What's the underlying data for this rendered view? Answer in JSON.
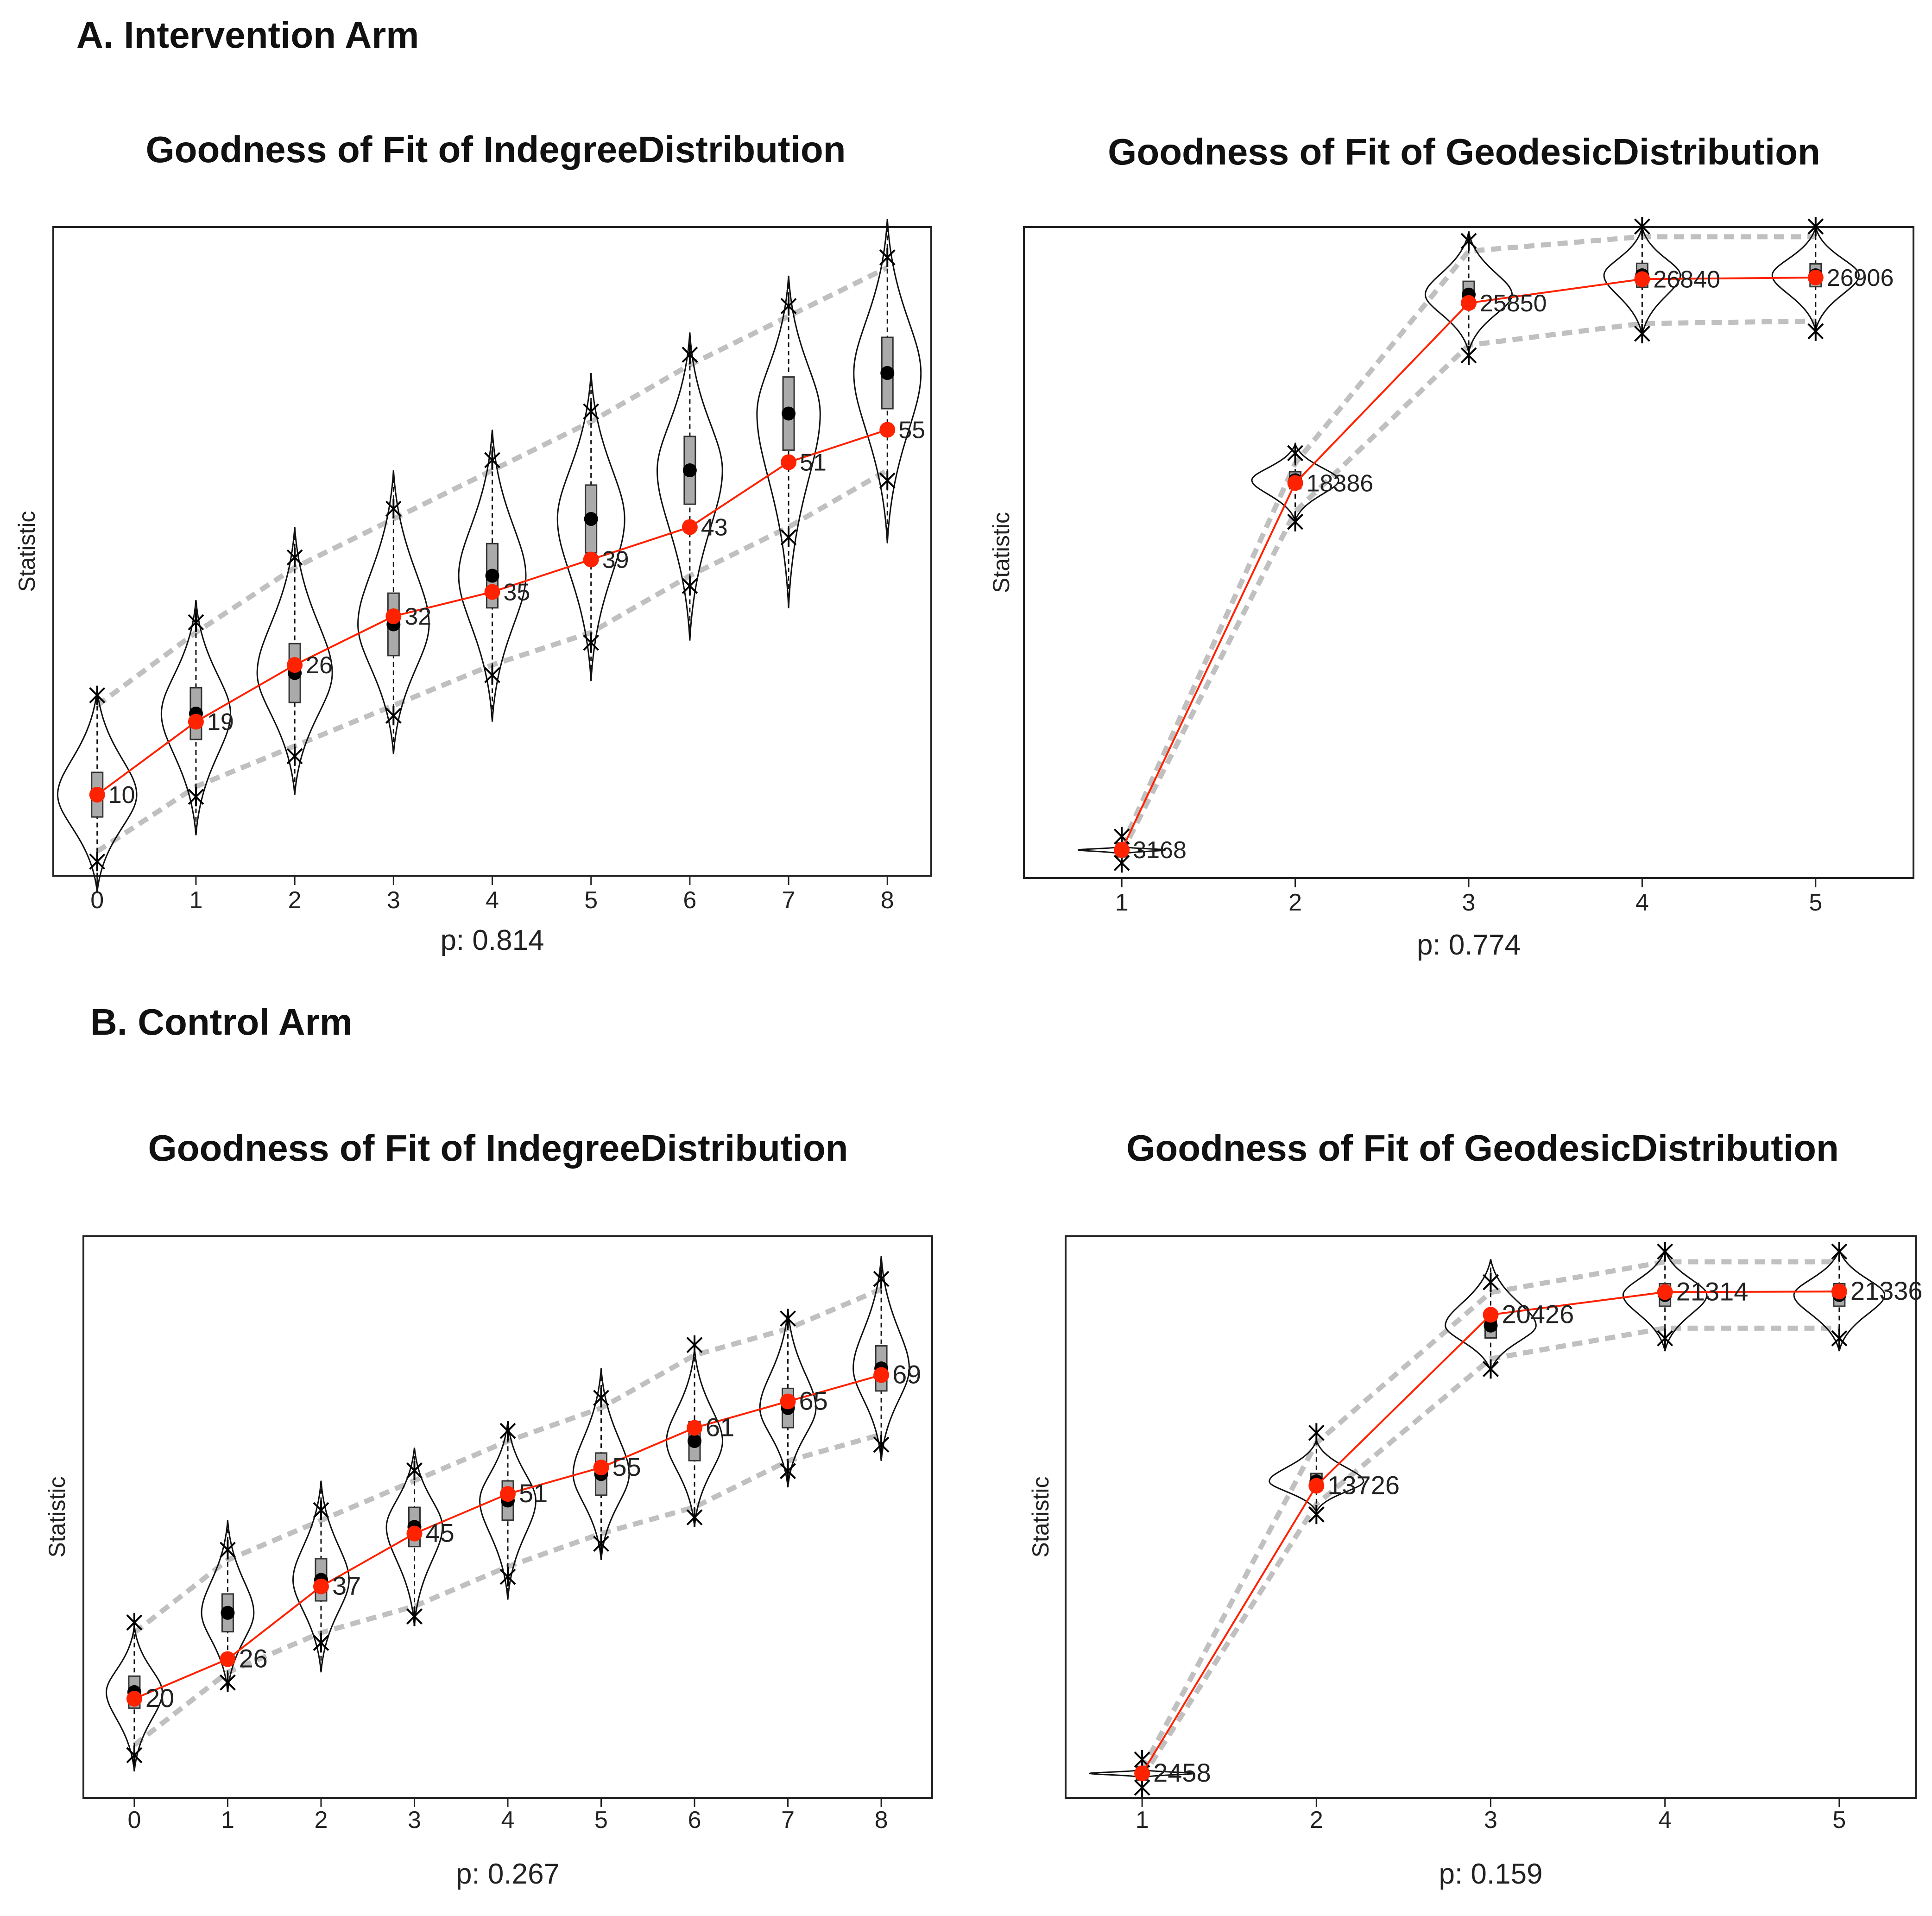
{
  "sections": {
    "a": "A. Intervention Arm",
    "b": "B. Control Arm"
  },
  "colors": {
    "observed": "#ff2200",
    "simulated": "#000000",
    "band": "#c0c0c0",
    "box": "#aaaaaa"
  },
  "chart_data": [
    {
      "type": "violin",
      "section": "A. Intervention Arm",
      "title": "Goodness of Fit of IndegreeDistribution",
      "xlabel": "p: 0.814",
      "ylabel": "Statistic",
      "categories": [
        "0",
        "1",
        "2",
        "3",
        "4",
        "5",
        "6",
        "7",
        "8"
      ],
      "ylim": [
        0,
        80
      ],
      "observed": [
        10,
        19,
        26,
        32,
        35,
        39,
        43,
        51,
        55
      ],
      "observed_labels": [
        "10",
        "19",
        "26",
        "32",
        "35",
        "39",
        "43",
        "51",
        "55"
      ],
      "simulated_median": [
        10,
        20,
        25,
        31,
        37,
        44,
        50,
        57,
        62
      ],
      "interval_upper": [
        21,
        30,
        38,
        44,
        50,
        56,
        63,
        69,
        75
      ],
      "interval_lower": [
        3,
        11,
        16,
        21,
        26,
        30,
        37,
        43,
        50
      ],
      "violin_min": [
        -2,
        5,
        10,
        15,
        19,
        24,
        29,
        33,
        41
      ],
      "violin_max": [
        23,
        34,
        43,
        50,
        55,
        62,
        67,
        74,
        81
      ],
      "violin_width": [
        0.4,
        0.35,
        0.38,
        0.36,
        0.34,
        0.34,
        0.33,
        0.32,
        0.34
      ]
    },
    {
      "type": "violin",
      "section": "A. Intervention Arm",
      "title": "Goodness of Fit of GeodesicDistribution",
      "xlabel": "p: 0.774",
      "ylabel": "Statistic",
      "categories": [
        "1",
        "2",
        "3",
        "4",
        "5"
      ],
      "ylim": [
        2000,
        29000
      ],
      "observed": [
        3168,
        18386,
        25850,
        26840,
        26906
      ],
      "observed_labels": [
        "3168",
        "18386",
        "25850",
        "26840",
        "26906"
      ],
      "simulated_median": [
        3168,
        18500,
        26200,
        27000,
        27000
      ],
      "interval_upper": [
        3300,
        19200,
        28000,
        28600,
        28600
      ],
      "interval_lower": [
        3050,
        17200,
        24100,
        25000,
        25100
      ],
      "violin_min": [
        3000,
        16800,
        23800,
        24500,
        24700
      ],
      "violin_max": [
        3300,
        20000,
        28800,
        29000,
        29000
      ],
      "violin_width": [
        0.25,
        0.25,
        0.25,
        0.22,
        0.25
      ]
    },
    {
      "type": "violin",
      "section": "B. Control Arm",
      "title": "Goodness of Fit of IndegreeDistribution",
      "xlabel": "p: 0.267",
      "ylabel": "Statistic",
      "categories": [
        "0",
        "1",
        "2",
        "3",
        "4",
        "5",
        "6",
        "7",
        "8"
      ],
      "ylim": [
        5,
        90
      ],
      "observed": [
        20,
        26,
        37,
        45,
        51,
        55,
        61,
        65,
        69
      ],
      "observed_labels": [
        "20",
        "26",
        "37",
        "45",
        "51",
        "55",
        "61",
        "65",
        "69"
      ],
      "simulated_median": [
        21,
        33,
        38,
        46,
        50,
        54,
        59,
        64,
        70
      ],
      "interval_upper": [
        30,
        41,
        47,
        53,
        59,
        64,
        72,
        76,
        82
      ],
      "interval_lower": [
        13,
        24,
        30,
        34,
        40,
        45,
        49,
        56,
        60
      ],
      "violin_min": [
        9,
        21,
        24,
        31,
        35,
        41,
        46,
        52,
        56
      ],
      "violin_max": [
        31,
        47,
        53,
        58,
        62,
        70,
        73,
        79,
        87
      ],
      "violin_width": [
        0.3,
        0.28,
        0.3,
        0.3,
        0.3,
        0.3,
        0.3,
        0.3,
        0.3
      ]
    },
    {
      "type": "violin",
      "section": "B. Control Arm",
      "title": "Goodness of Fit of GeodesicDistribution",
      "xlabel": "p: 0.159",
      "ylabel": "Statistic",
      "categories": [
        "1",
        "2",
        "3",
        "4",
        "5"
      ],
      "ylim": [
        1500,
        23500
      ],
      "observed": [
        2458,
        13726,
        20426,
        21314,
        21336
      ],
      "observed_labels": [
        "2458",
        "13726",
        "20426",
        "21314",
        "21336"
      ],
      "simulated_median": [
        2458,
        13900,
        20000,
        21200,
        21200
      ],
      "interval_upper": [
        2600,
        15400,
        21300,
        22500,
        22500
      ],
      "interval_lower": [
        2300,
        13000,
        18700,
        19900,
        19900
      ],
      "violin_min": [
        2300,
        12700,
        18200,
        19000,
        19000
      ],
      "violin_max": [
        2600,
        15500,
        22600,
        23000,
        23000
      ],
      "violin_width": [
        0.3,
        0.27,
        0.26,
        0.24,
        0.26
      ]
    }
  ]
}
